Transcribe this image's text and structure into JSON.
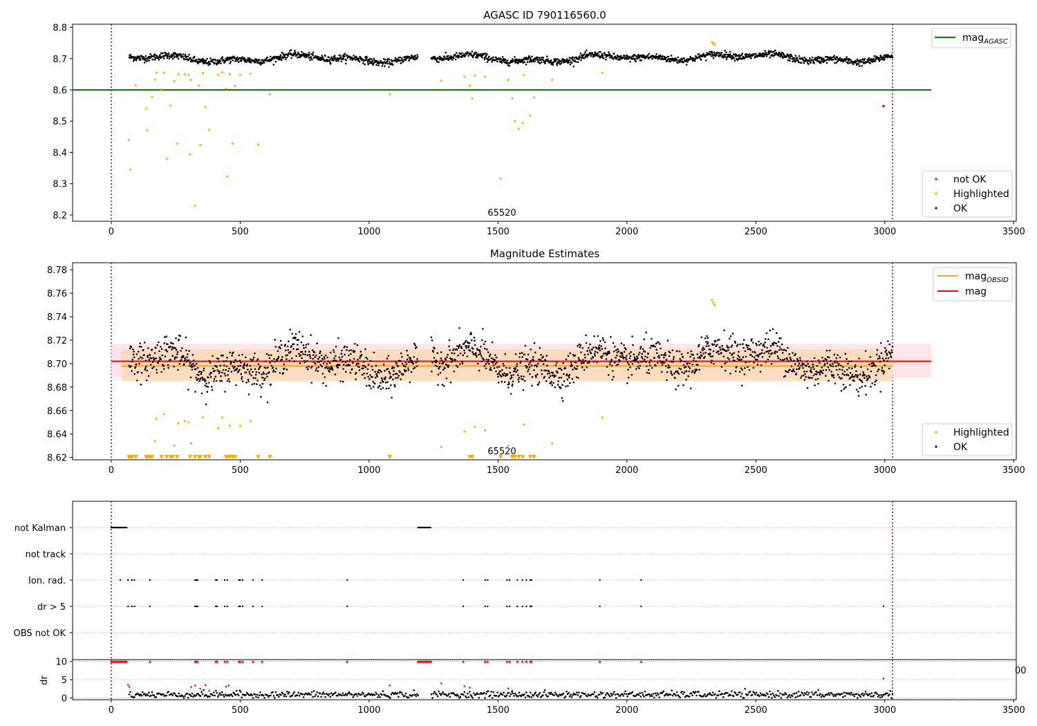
{
  "chart_data": [
    {
      "id": "mag-history",
      "type": "scatter",
      "title": "AGASC ID 790116560.0",
      "xlim": [
        -150,
        3510
      ],
      "ylim": [
        8.18,
        8.81
      ],
      "x_ticks": [
        0,
        500,
        1000,
        1500,
        2000,
        2500,
        3000,
        3500
      ],
      "y_ticks": [
        8.2,
        8.3,
        8.4,
        8.5,
        8.6,
        8.7,
        8.8
      ],
      "vlines": [
        0,
        3030
      ],
      "annotation": {
        "text": "65520",
        "x": 1510,
        "y": 8.2
      },
      "hline": {
        "name": "mag_AGASC",
        "label": "mag",
        "subscript": "AGASC",
        "y": 8.6,
        "x": [
          -150,
          3180
        ],
        "color": "#008000"
      },
      "legend_line": [
        {
          "label": "mag",
          "subscript": "AGASC",
          "color": "#008000"
        }
      ],
      "legend_points": [
        {
          "label": "not OK",
          "color": "#ff0000"
        },
        {
          "label": "Highlighted",
          "color": "#ffa500"
        },
        {
          "label": "OK",
          "color": "#000000"
        }
      ],
      "ok_band": {
        "x": [
          70,
          3030
        ],
        "gap": [
          1190,
          1240
        ],
        "center_y": 8.7
      },
      "highlighted": [
        [
          68,
          8.44
        ],
        [
          75,
          8.345
        ],
        [
          95,
          8.615
        ],
        [
          135,
          8.54
        ],
        [
          140,
          8.47
        ],
        [
          158,
          8.578
        ],
        [
          170,
          8.632
        ],
        [
          175,
          8.655
        ],
        [
          195,
          8.602
        ],
        [
          205,
          8.655
        ],
        [
          215,
          8.38
        ],
        [
          230,
          8.55
        ],
        [
          245,
          8.628
        ],
        [
          255,
          8.428
        ],
        [
          260,
          8.65
        ],
        [
          285,
          8.65
        ],
        [
          300,
          8.648
        ],
        [
          305,
          8.394
        ],
        [
          310,
          8.632
        ],
        [
          325,
          8.23
        ],
        [
          340,
          8.614
        ],
        [
          345,
          8.424
        ],
        [
          355,
          8.654
        ],
        [
          365,
          8.545
        ],
        [
          380,
          8.472
        ],
        [
          415,
          8.648
        ],
        [
          430,
          8.656
        ],
        [
          445,
          8.604
        ],
        [
          450,
          8.323
        ],
        [
          460,
          8.65
        ],
        [
          470,
          8.428
        ],
        [
          480,
          8.613
        ],
        [
          500,
          8.648
        ],
        [
          540,
          8.652
        ],
        [
          570,
          8.426
        ],
        [
          615,
          8.586
        ],
        [
          1080,
          8.586
        ],
        [
          1280,
          8.63
        ],
        [
          1370,
          8.642
        ],
        [
          1390,
          8.614
        ],
        [
          1400,
          8.572
        ],
        [
          1410,
          8.646
        ],
        [
          1450,
          8.642
        ],
        [
          1510,
          8.316
        ],
        [
          1540,
          8.632
        ],
        [
          1555,
          8.572
        ],
        [
          1565,
          8.5
        ],
        [
          1580,
          8.475
        ],
        [
          1595,
          8.494
        ],
        [
          1600,
          8.648
        ],
        [
          1625,
          8.518
        ],
        [
          1640,
          8.576
        ],
        [
          1710,
          8.632
        ],
        [
          1905,
          8.655
        ],
        [
          2330,
          8.752
        ],
        [
          2335,
          8.748
        ],
        [
          2340,
          8.745
        ]
      ],
      "not_ok": [
        [
          2995,
          8.548
        ]
      ]
    },
    {
      "id": "mag-estimates",
      "type": "scatter",
      "title": "Magnitude Estimates",
      "xlim": [
        -150,
        3510
      ],
      "ylim": [
        8.618,
        8.786
      ],
      "x_ticks": [
        0,
        500,
        1000,
        1500,
        2000,
        2500,
        3000,
        3500
      ],
      "y_ticks": [
        8.62,
        8.64,
        8.66,
        8.68,
        8.7,
        8.72,
        8.74,
        8.76,
        8.78
      ],
      "vlines": [
        0,
        3030
      ],
      "annotation": {
        "text": "65520",
        "x": 1510,
        "y": 8.624
      },
      "hlines": [
        {
          "name": "mag_OBSID",
          "label": "mag",
          "subscript": "OBSID",
          "y": 8.698,
          "x": [
            40,
            3030
          ],
          "color": "#ffa500",
          "band": [
            8.685,
            8.712
          ],
          "band_color": "#ffdab9"
        },
        {
          "name": "mag",
          "label": "mag",
          "subscript": "",
          "y": 8.702,
          "x": [
            0,
            3180
          ],
          "color": "#ff0000",
          "band": [
            8.688,
            8.717
          ],
          "band_color": "#ffe0e3"
        }
      ],
      "legend_line": [
        {
          "label": "mag",
          "subscript": "OBSID",
          "color": "#ffa500"
        },
        {
          "label": "mag",
          "subscript": "",
          "color": "#ff0000"
        }
      ],
      "legend_points": [
        {
          "label": "Highlighted",
          "color": "#ffa500"
        },
        {
          "label": "OK",
          "color": "#000000"
        }
      ],
      "ok_band": {
        "x": [
          70,
          3030
        ],
        "gap": [
          1190,
          1240
        ],
        "center_y": 8.7
      },
      "highlighted": [
        [
          170,
          8.634
        ],
        [
          175,
          8.653
        ],
        [
          205,
          8.657
        ],
        [
          245,
          8.63
        ],
        [
          260,
          8.649
        ],
        [
          285,
          8.651
        ],
        [
          300,
          8.65
        ],
        [
          310,
          8.632
        ],
        [
          355,
          8.654
        ],
        [
          415,
          8.645
        ],
        [
          430,
          8.654
        ],
        [
          460,
          8.647
        ],
        [
          500,
          8.647
        ],
        [
          540,
          8.651
        ],
        [
          1280,
          8.629
        ],
        [
          1370,
          8.642
        ],
        [
          1410,
          8.646
        ],
        [
          1450,
          8.643
        ],
        [
          1540,
          8.63
        ],
        [
          1600,
          8.648
        ],
        [
          1710,
          8.632
        ],
        [
          1905,
          8.654
        ],
        [
          2330,
          8.754
        ],
        [
          2335,
          8.752
        ],
        [
          2340,
          8.75
        ]
      ],
      "clipped_x": [
        68,
        75,
        80,
        95,
        135,
        140,
        150,
        158,
        195,
        215,
        230,
        238,
        255,
        305,
        325,
        340,
        345,
        365,
        380,
        445,
        450,
        460,
        470,
        480,
        570,
        615,
        1080,
        1390,
        1400,
        1510,
        1555,
        1565,
        1580,
        1595,
        1625,
        1640
      ]
    },
    {
      "id": "flags",
      "type": "scatter",
      "title": "",
      "xlim": [
        -150,
        3510
      ],
      "categories": [
        "not Kalman",
        "not track",
        "Ion. rad.",
        "dr > 5",
        "OBS not OK"
      ],
      "vlines": [
        0,
        3030
      ],
      "flags": {
        "not Kalman": [
          [
            0,
            60
          ],
          [
            1190,
            1240
          ]
        ],
        "not track": [],
        "Ion. rad.": [
          35,
          65,
          80,
          90,
          150,
          325,
          330,
          335,
          405,
          410,
          440,
          450,
          495,
          500,
          510,
          550,
          585,
          915,
          1365,
          1450,
          1460,
          1535,
          1545,
          1575,
          1595,
          1610,
          1625,
          1630,
          1895,
          2055
        ],
        "dr > 5": [
          65,
          80,
          90,
          150,
          325,
          330,
          335,
          405,
          410,
          440,
          450,
          495,
          500,
          510,
          550,
          585,
          915,
          1365,
          1450,
          1460,
          1535,
          1545,
          1575,
          1595,
          1610,
          1625,
          1630,
          1895,
          2055,
          2995
        ],
        "OBS not OK": []
      }
    },
    {
      "id": "dr",
      "type": "scatter",
      "title": "",
      "xlim": [
        -150,
        3510
      ],
      "ylim": [
        -0.5,
        10.5
      ],
      "ylabel": "dr",
      "y_ticks": [
        0,
        5,
        10
      ],
      "x_ticks": [
        0,
        500,
        1000,
        1500,
        2000,
        2500,
        3000,
        3500
      ],
      "overflow_tick": "00",
      "vlines": [
        0,
        3030
      ],
      "red_at_10": [
        0,
        5,
        10,
        15,
        20,
        25,
        30,
        35,
        40,
        45,
        50,
        55,
        60,
        150,
        325,
        330,
        335,
        405,
        410,
        440,
        450,
        495,
        500,
        510,
        550,
        585,
        915,
        1190,
        1195,
        1200,
        1205,
        1210,
        1215,
        1220,
        1225,
        1230,
        1235,
        1240,
        1365,
        1450,
        1460,
        1535,
        1545,
        1575,
        1595,
        1610,
        1625,
        1630,
        1895,
        2055
      ],
      "red_mid": [
        [
          65,
          3.6
        ],
        [
          70,
          3.0
        ],
        [
          310,
          3.0
        ],
        [
          325,
          3.4
        ],
        [
          345,
          2.5
        ],
        [
          365,
          3.5
        ],
        [
          380,
          2.0
        ],
        [
          445,
          3.1
        ],
        [
          455,
          3.4
        ],
        [
          1080,
          3.4
        ],
        [
          1280,
          4.0
        ],
        [
          1370,
          3.2
        ],
        [
          1390,
          2.8
        ],
        [
          1540,
          2.6
        ],
        [
          1555,
          2.0
        ],
        [
          2995,
          5.3
        ]
      ]
    }
  ]
}
